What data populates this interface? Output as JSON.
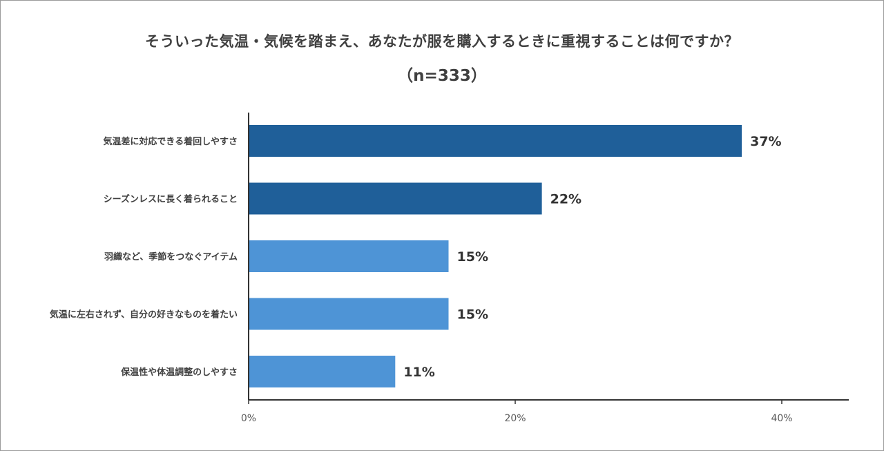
{
  "chart_data": {
    "type": "bar",
    "orientation": "horizontal",
    "title": "そういった気温・気候を踏まえ、あなたが服を購入するときに重視することは何ですか？",
    "subtitle": "（n=333）",
    "categories": [
      "気温差に対応できる着回しやすさ",
      "シーズンレスに長く着られること",
      "羽織など、季節をつなぐアイテム",
      "気温に左右されず、自分の好きなものを着たい",
      "保温性や体温調整のしやすさ"
    ],
    "values": [
      37,
      22,
      15,
      15,
      11
    ],
    "value_labels": [
      "37%",
      "22%",
      "15%",
      "15%",
      "11%"
    ],
    "bar_colors": [
      "#1f5f99",
      "#1f5f99",
      "#4e94d6",
      "#4e94d6",
      "#4e94d6"
    ],
    "x_ticks": [
      0,
      20,
      40
    ],
    "x_tick_labels": [
      "0%",
      "20%",
      "40%"
    ],
    "xlim": [
      0,
      45
    ],
    "grid": false,
    "legend": "none"
  }
}
